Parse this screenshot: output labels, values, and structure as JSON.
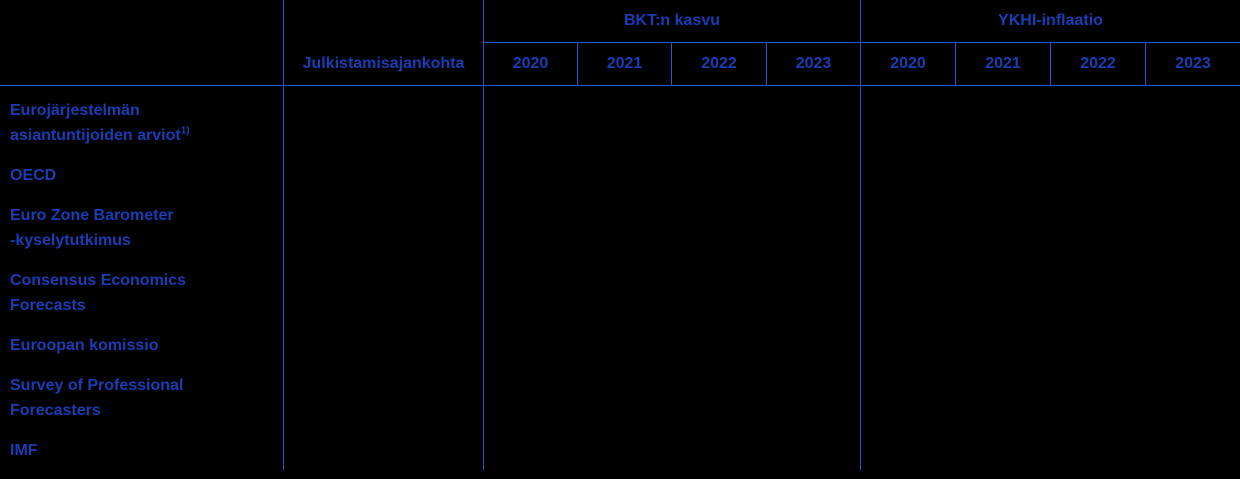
{
  "page": {
    "background_color": "#000000",
    "text_color": "#1a3cb5",
    "line_color": "#2255dc"
  },
  "table": {
    "header": {
      "publication_column": "Julkistamisajankohta",
      "groups": [
        {
          "label": "BKT:n kasvu",
          "years": [
            "2020",
            "2021",
            "2022",
            "2023"
          ]
        },
        {
          "label": "YKHI-inflaatio",
          "years": [
            "2020",
            "2021",
            "2022",
            "2023"
          ]
        }
      ]
    },
    "rows": [
      {
        "lines": [
          "Eurojärjestelmän",
          "asiantuntijoiden arviot"
        ],
        "footnote_marker": "1)"
      },
      {
        "lines": [
          "OECD"
        ]
      },
      {
        "lines": [
          "Euro Zone Barometer",
          "-kyselytutkimus"
        ]
      },
      {
        "lines": [
          "Consensus Economics",
          "Forecasts"
        ]
      },
      {
        "lines": [
          "Euroopan komissio"
        ]
      },
      {
        "lines": [
          "Survey of Professional",
          "Forecasters"
        ]
      },
      {
        "lines": [
          "IMF"
        ]
      }
    ]
  }
}
